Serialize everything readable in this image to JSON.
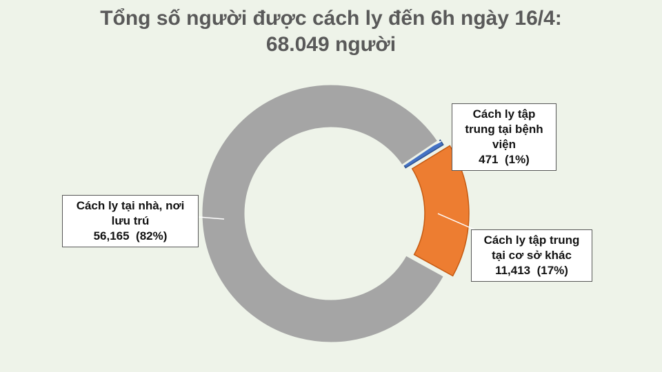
{
  "chart_data": {
    "type": "donut",
    "title": "Tổng số người được cách ly đến 6h ngày 16/4:",
    "subtitle": "68.049 người",
    "categories": [
      "Cách ly tập trung tại bệnh viện",
      "Cách ly tập trung tại cơ sở khác",
      "Cách ly tại nhà, nơi lưu trú"
    ],
    "values": [
      471,
      11413,
      56165
    ],
    "value_labels": [
      "471",
      "11,413",
      "56,165"
    ],
    "percent_labels": [
      "(1%)",
      "(17%)",
      "(82%)"
    ],
    "colors": [
      "#4472c4",
      "#ed7d31",
      "#a5a5a5"
    ]
  }
}
